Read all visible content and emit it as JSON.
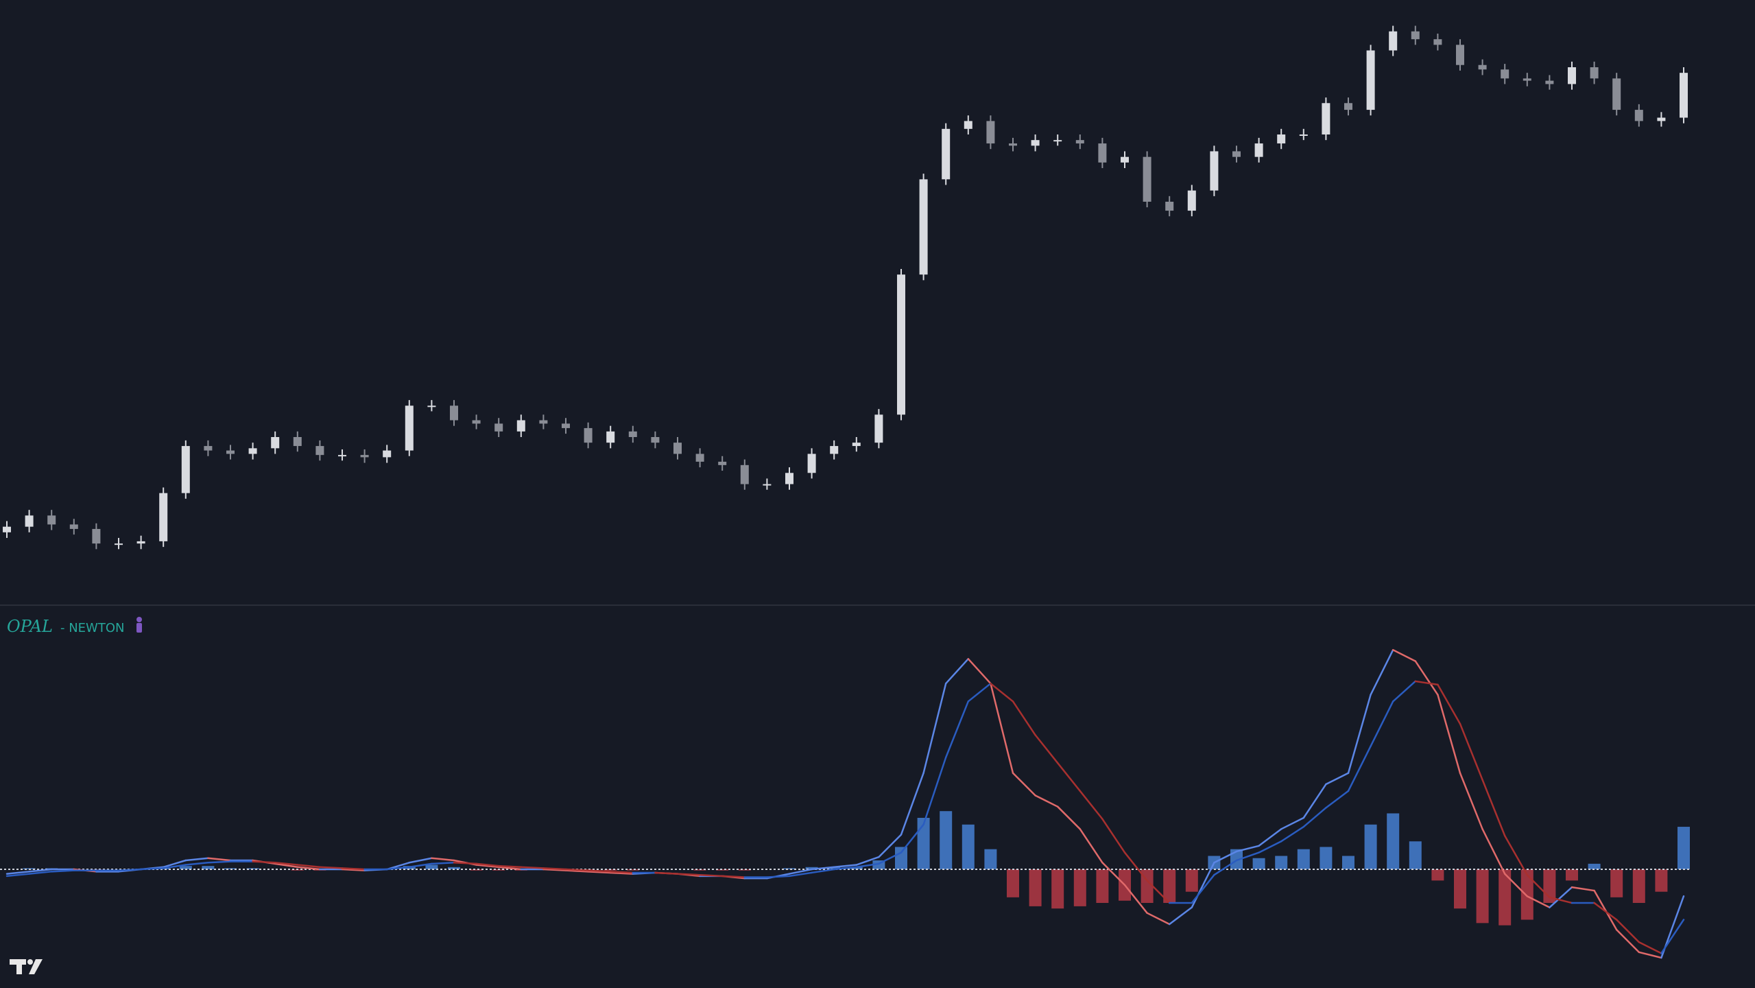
{
  "chart_data": [
    {
      "type": "candlestick",
      "open": [
        65,
        70,
        80,
        72,
        68,
        55,
        55,
        57,
        100,
        142,
        138,
        135,
        140,
        150,
        142,
        134,
        134,
        132,
        138,
        178,
        178,
        165,
        162,
        155,
        165,
        162,
        158,
        145,
        155,
        150,
        145,
        135,
        128,
        125,
        108,
        108,
        118,
        135,
        142,
        145,
        170,
        295,
        380,
        425,
        432,
        412,
        410,
        415,
        415,
        412,
        395,
        400,
        360,
        352,
        370,
        405,
        400,
        412,
        420,
        420,
        448,
        442,
        495,
        512,
        505,
        500,
        482,
        478,
        470,
        468,
        465,
        480,
        470,
        442,
        432,
        435
      ],
      "high": [
        75,
        85,
        85,
        77,
        73,
        60,
        62,
        105,
        147,
        147,
        143,
        145,
        155,
        155,
        147,
        139,
        139,
        143,
        183,
        183,
        183,
        170,
        167,
        170,
        170,
        167,
        163,
        160,
        160,
        155,
        150,
        140,
        133,
        130,
        113,
        123,
        140,
        147,
        150,
        175,
        300,
        385,
        430,
        437,
        437,
        417,
        420,
        420,
        420,
        417,
        405,
        405,
        365,
        375,
        410,
        410,
        417,
        425,
        425,
        453,
        453,
        500,
        517,
        517,
        510,
        505,
        487,
        483,
        475,
        473,
        485,
        485,
        475,
        447,
        440,
        480
      ],
      "low": [
        60,
        65,
        67,
        63,
        50,
        50,
        50,
        52,
        95,
        133,
        130,
        130,
        135,
        137,
        129,
        129,
        127,
        127,
        133,
        173,
        160,
        157,
        150,
        150,
        157,
        153,
        140,
        140,
        145,
        140,
        130,
        123,
        120,
        103,
        103,
        103,
        113,
        130,
        137,
        140,
        165,
        290,
        375,
        420,
        407,
        405,
        405,
        410,
        407,
        390,
        390,
        355,
        347,
        347,
        365,
        395,
        395,
        407,
        415,
        415,
        437,
        437,
        490,
        500,
        495,
        477,
        473,
        465,
        463,
        460,
        460,
        465,
        437,
        427,
        427,
        430
      ],
      "close": [
        70,
        80,
        72,
        68,
        55,
        55,
        57,
        100,
        142,
        138,
        135,
        140,
        150,
        142,
        134,
        134,
        132,
        138,
        178,
        178,
        165,
        162,
        155,
        165,
        162,
        158,
        145,
        155,
        150,
        145,
        135,
        128,
        125,
        108,
        108,
        118,
        135,
        142,
        145,
        170,
        295,
        380,
        425,
        432,
        412,
        410,
        415,
        415,
        412,
        395,
        400,
        360,
        352,
        370,
        405,
        400,
        412,
        420,
        420,
        448,
        442,
        495,
        512,
        505,
        500,
        482,
        478,
        470,
        468,
        465,
        480,
        470,
        442,
        432,
        435,
        475
      ],
      "up_color": "#d9dbe0",
      "down_color": "#8a8d96",
      "ylim": [
        0,
        540
      ]
    },
    {
      "type": "oscillator",
      "title": "OPAL",
      "subtitle": "- NEWTON",
      "lines": [
        {
          "values": [
            -4,
            -2,
            0,
            0,
            -2,
            -2,
            0,
            2,
            8,
            10,
            8,
            8,
            5,
            2,
            0,
            0,
            -1,
            0,
            6,
            10,
            8,
            4,
            2,
            0,
            0,
            -1,
            -2,
            -3,
            -4,
            -3,
            -4,
            -6,
            -6,
            -8,
            -8,
            -4,
            0,
            2,
            4,
            11,
            31,
            86,
            166,
            188,
            166,
            86,
            66,
            56,
            36,
            6,
            -14,
            -39,
            -49,
            -34,
            6,
            16,
            21,
            36,
            46,
            76,
            86,
            156,
            196,
            186,
            156,
            86,
            36,
            -4,
            -24,
            -34,
            -16,
            -19,
            -54,
            -74,
            -79,
            -24
          ],
          "rise_color": "#5b86e6",
          "fall_color": "#e06a6a"
        },
        {
          "values": [
            -6,
            -4,
            -2,
            -1,
            -1,
            -1,
            0,
            1,
            4,
            6,
            7,
            7,
            6,
            4,
            2,
            1,
            0,
            0,
            2,
            5,
            6,
            5,
            3,
            2,
            1,
            0,
            -1,
            -2,
            -3,
            -3,
            -4,
            -5,
            -6,
            -7,
            -7,
            -6,
            -3,
            0,
            2,
            5,
            15,
            40,
            100,
            150,
            166,
            150,
            120,
            95,
            70,
            45,
            15,
            -10,
            -30,
            -30,
            -5,
            8,
            15,
            25,
            38,
            55,
            70,
            110,
            150,
            168,
            165,
            130,
            80,
            30,
            -5,
            -25,
            -30,
            -30,
            -45,
            -65,
            -75,
            -45
          ],
          "rise_color": "#2a5cc0",
          "fall_color": "#a8302f"
        }
      ],
      "histogram": {
        "values": [
          0,
          1,
          1,
          0,
          -1,
          0,
          0,
          1,
          3,
          3,
          1,
          1,
          0,
          -1,
          -1,
          0,
          0,
          0,
          3,
          4,
          2,
          -1,
          -1,
          -1,
          0,
          0,
          -1,
          -1,
          -1,
          0,
          0,
          -1,
          -1,
          -1,
          0,
          1,
          2,
          2,
          2,
          8,
          20,
          46,
          52,
          40,
          18,
          -25,
          -33,
          -35,
          -33,
          -30,
          -28,
          -30,
          -30,
          -20,
          12,
          18,
          10,
          12,
          18,
          20,
          12,
          40,
          50,
          25,
          -10,
          -35,
          -48,
          -50,
          -45,
          -30,
          -10,
          5,
          -25,
          -30,
          -20,
          38
        ],
        "positive_color": "#3e70b8",
        "negative_color": "#9c3440"
      },
      "zero_line": true,
      "ylim": [
        -106,
        236
      ]
    }
  ]
}
